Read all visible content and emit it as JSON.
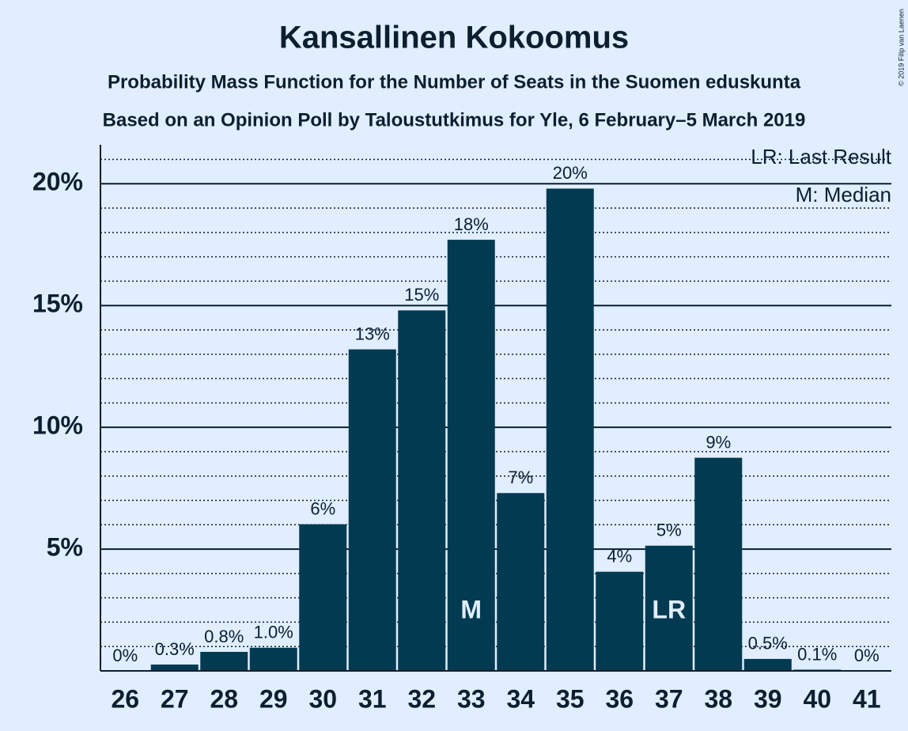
{
  "chart_data": {
    "type": "bar",
    "title": "Kansallinen Kokoomus",
    "subtitle": "Probability Mass Function for the Number of Seats in the Suomen eduskunta",
    "subtitle2": "Based on an Opinion Poll by Taloustutkimus for Yle, 6 February–5 March 2019",
    "copyright": "© 2019 Filip van Laenen",
    "legend": [
      "LR: Last Result",
      "M: Median"
    ],
    "categories": [
      "26",
      "27",
      "28",
      "29",
      "30",
      "31",
      "32",
      "33",
      "34",
      "35",
      "36",
      "37",
      "38",
      "39",
      "40",
      "41"
    ],
    "values": [
      0,
      0.26,
      0.78,
      0.95,
      6.02,
      13.2,
      14.8,
      17.7,
      7.3,
      19.8,
      4.07,
      5.14,
      8.75,
      0.49,
      0.05,
      0
    ],
    "value_labels": [
      "0%",
      "0.3%",
      "0.8%",
      "1.0%",
      "6%",
      "13%",
      "15%",
      "18%",
      "7%",
      "20%",
      "4%",
      "5%",
      "9%",
      "0.5%",
      "0.1%",
      "0%"
    ],
    "color": "#023a52",
    "markers": [
      {
        "label": "M",
        "category": "33"
      },
      {
        "label": "LR",
        "category": "37"
      }
    ],
    "ylim": [
      0,
      21.6
    ],
    "yticks": [
      {
        "value": 5,
        "label": "5%"
      },
      {
        "value": 10,
        "label": "10%"
      },
      {
        "value": 15,
        "label": "15%"
      },
      {
        "value": 20,
        "label": "20%"
      }
    ],
    "minor_yticks": [
      1,
      2,
      3,
      4,
      6,
      7,
      8,
      9,
      11,
      12,
      13,
      14,
      16,
      17,
      18,
      19,
      21
    ],
    "grid": true
  }
}
